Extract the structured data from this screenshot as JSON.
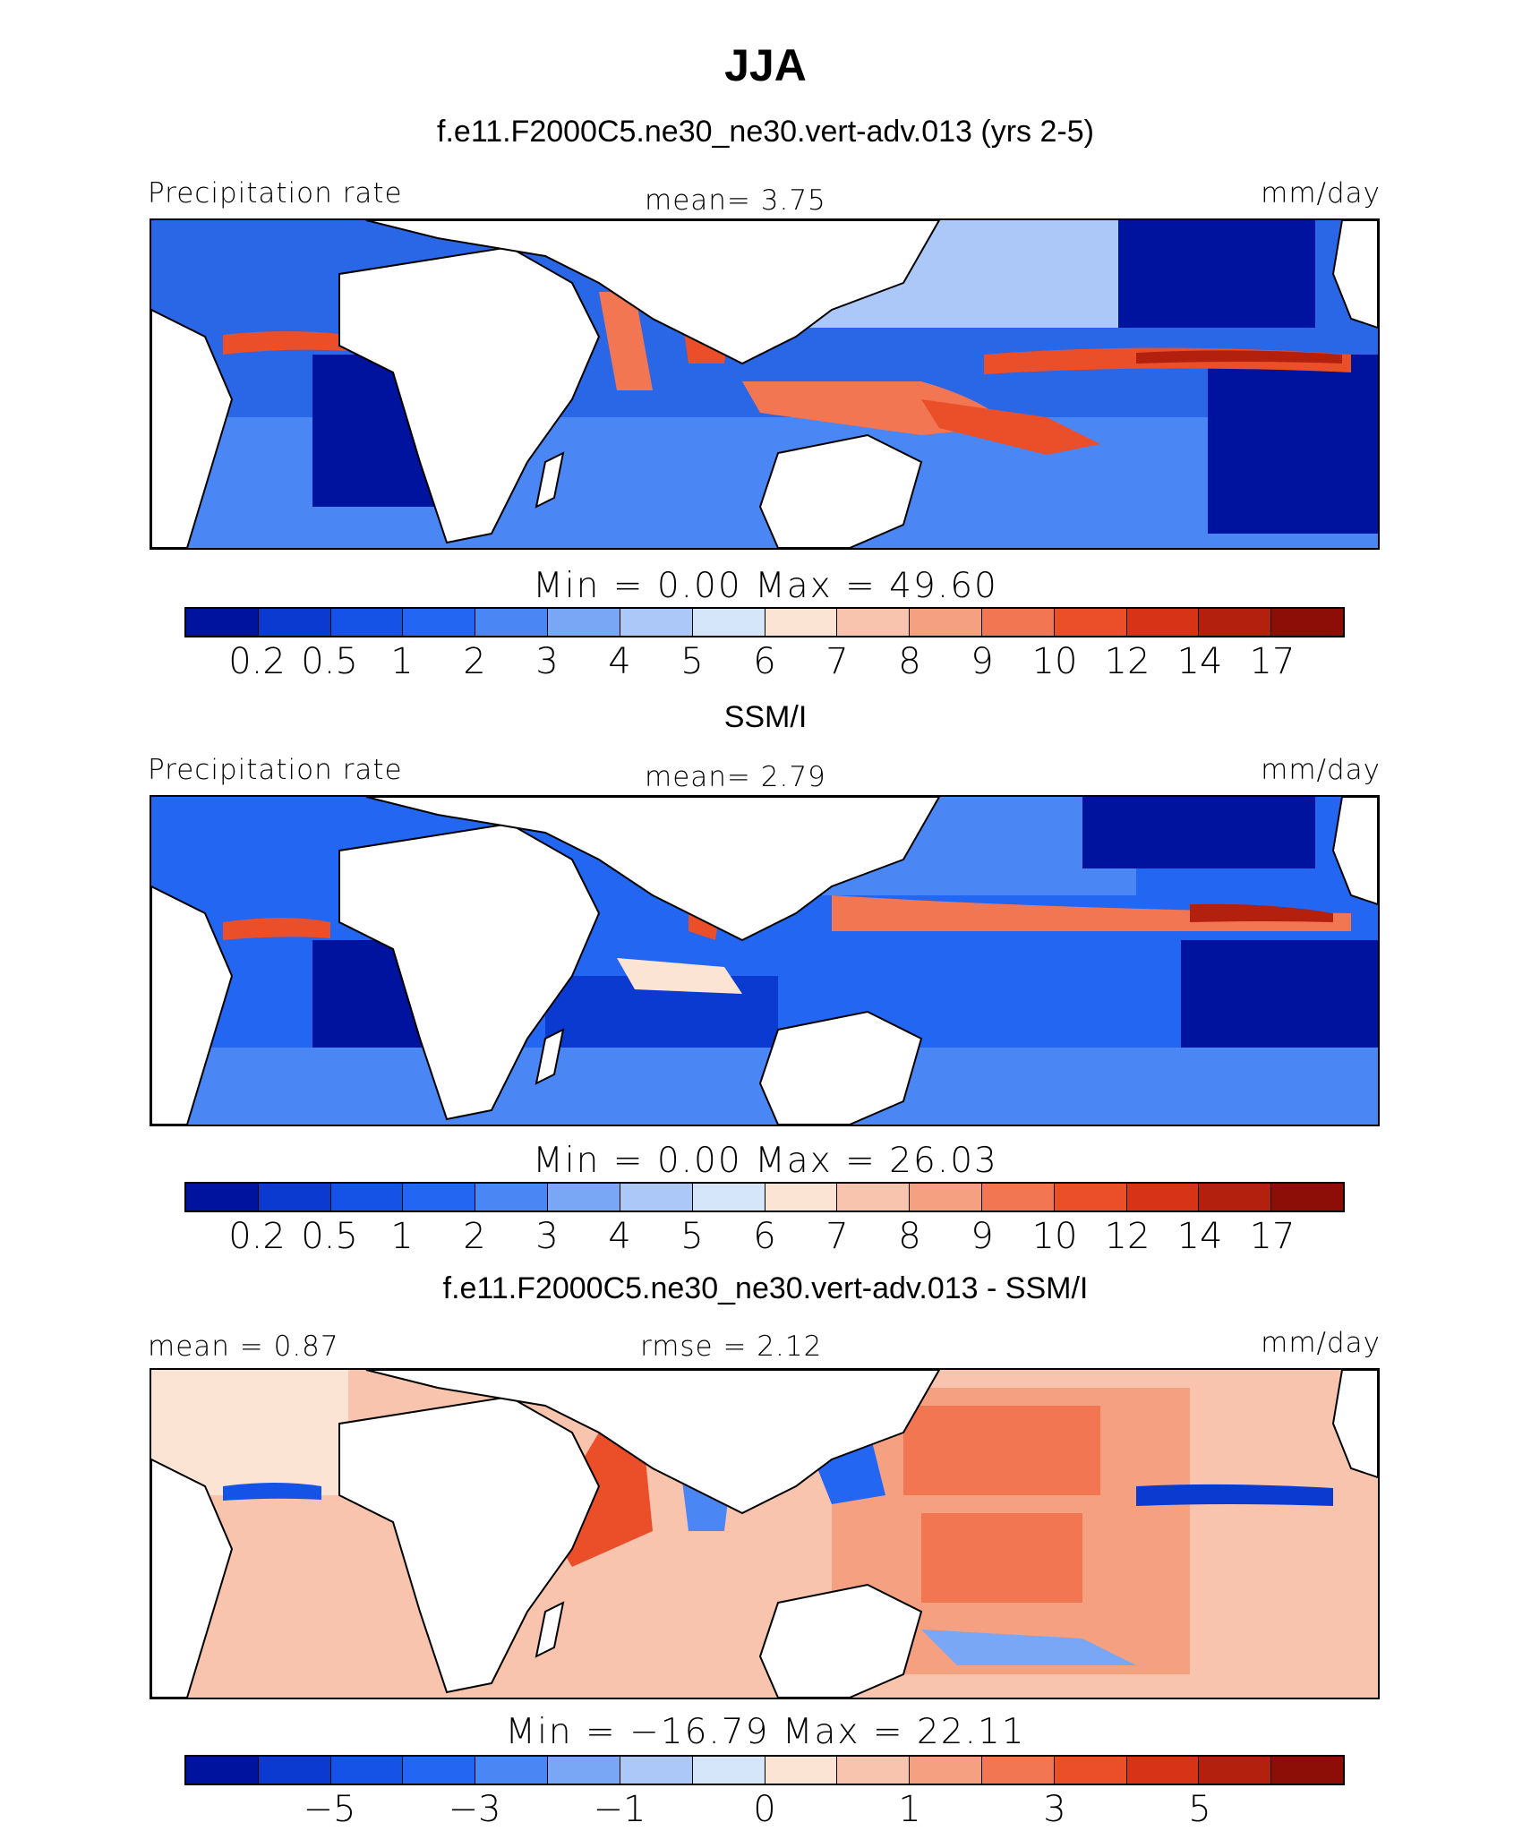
{
  "figure": {
    "title": "JJA"
  },
  "panels": [
    {
      "id": "model",
      "subtitle": "f.e11.F2000C5.ne30_ne30.vert-adv.013 (yrs 2-5)",
      "left_label": "Precipitation rate",
      "center_label": "mean=   3.75",
      "right_label": "mm/day",
      "minmax": "Min =    0.00 Max =   49.60"
    },
    {
      "id": "obs",
      "subtitle": "SSM/I",
      "left_label": "Precipitation rate",
      "center_label": "mean=   2.79",
      "right_label": "mm/day",
      "minmax": "Min =    0.00 Max =   26.03"
    },
    {
      "id": "diff",
      "subtitle": "f.e11.F2000C5.ne30_ne30.vert-adv.013 - SSM/I",
      "left_label": "mean =   0.87",
      "center_label": "rmse =   2.12",
      "right_label": "mm/day",
      "minmax": "Min = −16.79 Max =   22.11"
    }
  ],
  "colorbar_colors": [
    "#00139e",
    "#0a3ad0",
    "#1552e6",
    "#2366f2",
    "#4a86f4",
    "#7aa6f6",
    "#abc8f8",
    "#d6e6fa",
    "#fbe4d4",
    "#f8c4ad",
    "#f5a081",
    "#f37653",
    "#ea4f2a",
    "#d73316",
    "#b3200e",
    "#8c0e07"
  ],
  "colorbar_precip_ticks": [
    "0.2",
    "0.5",
    "1",
    "2",
    "3",
    "4",
    "5",
    "6",
    "7",
    "8",
    "9",
    "10",
    "12",
    "14",
    "17"
  ],
  "colorbar_diff_ticks": [
    "−5",
    "−3",
    "−1",
    "0",
    "1",
    "3",
    "5"
  ],
  "chart_data": [
    {
      "type": "heatmap",
      "title": "f.e11.F2000C5.ne30_ne30.vert-adv.013 (yrs 2-5)",
      "variable": "Precipitation rate",
      "units": "mm/day",
      "mean": 3.75,
      "min": 0.0,
      "max": 49.6,
      "color_levels": [
        0.2,
        0.5,
        1,
        2,
        3,
        4,
        5,
        6,
        7,
        8,
        9,
        10,
        12,
        14,
        17
      ]
    },
    {
      "type": "heatmap",
      "title": "SSM/I",
      "variable": "Precipitation rate",
      "units": "mm/day",
      "mean": 2.79,
      "min": 0.0,
      "max": 26.03,
      "color_levels": [
        0.2,
        0.5,
        1,
        2,
        3,
        4,
        5,
        6,
        7,
        8,
        9,
        10,
        12,
        14,
        17
      ]
    },
    {
      "type": "heatmap",
      "title": "f.e11.F2000C5.ne30_ne30.vert-adv.013 - SSM/I",
      "units": "mm/day",
      "mean": 0.87,
      "rmse": 2.12,
      "min": -16.79,
      "max": 22.11,
      "color_levels": [
        -5,
        -3,
        -1,
        0,
        1,
        3,
        5
      ]
    }
  ]
}
